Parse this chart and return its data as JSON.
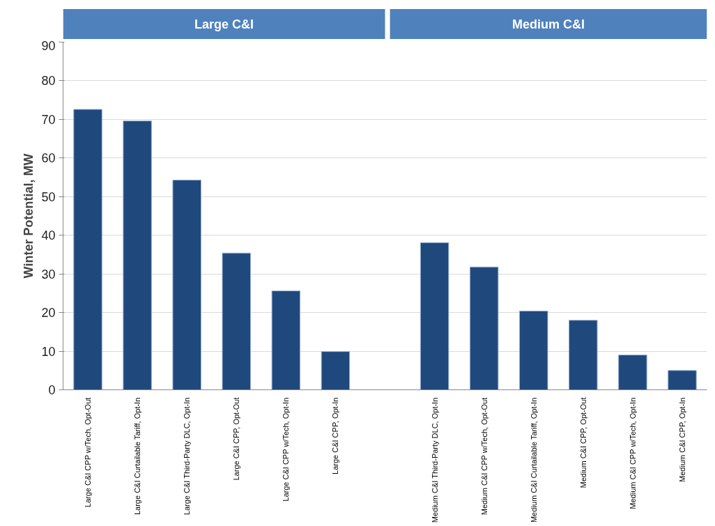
{
  "chart_data": {
    "type": "bar",
    "ylabel": "Winter Potential, MW",
    "categories": [
      "Large C&I CPP w/Tech, Opt-Out",
      "Large C&I Curtailable Tariff, Opt-In",
      "Large C&I Third-Party DLC, Opt-In",
      "Large C&I CPP, Opt-Out",
      "Large C&I CPP w/Tech, Opt-In",
      "Large C&I CPP, Opt-In",
      null,
      "Medium C&I Third-Party DLC, Opt-In",
      "Medium C&I CPP w/Tech, Opt-Out",
      "Medium C&I Curtailable Tariff, Opt-In",
      "Medium C&I CPP, Opt-Out",
      "Medium C&I CPP w/Tech, Opt-In",
      "Medium C&I CPP, Opt-In"
    ],
    "values": [
      72.6,
      69.6,
      54.3,
      35.4,
      25.6,
      9.9,
      null,
      38.1,
      31.8,
      20.4,
      18.0,
      9.0,
      5.0
    ],
    "color": "#1f497d",
    "ylim": [
      0,
      90
    ],
    "yticks": [
      0,
      10,
      20,
      30,
      40,
      50,
      60,
      70,
      80,
      90
    ],
    "grid": "y",
    "annotations": [
      "Large C&I",
      "Medium C&I"
    ]
  }
}
